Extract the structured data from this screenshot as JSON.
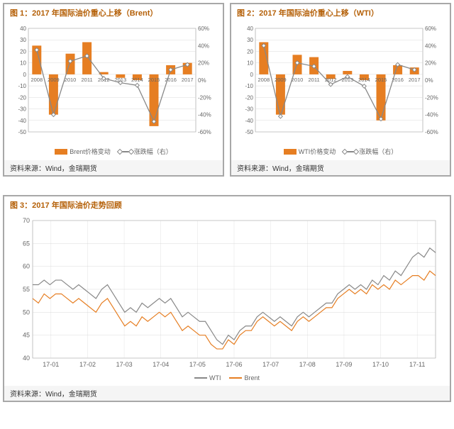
{
  "chart1": {
    "title": "图 1：2017 年国际油价重心上移（Brent）",
    "source": "资料来源：Wind，金瑞期货",
    "type": "bar+line",
    "y_left": {
      "min": -50,
      "max": 40,
      "ticks": [
        -50,
        -40,
        -30,
        -20,
        -10,
        0,
        10,
        20,
        30,
        40
      ]
    },
    "y_right": {
      "min": -60,
      "max": 60,
      "ticks": [
        -60,
        -40,
        -20,
        0,
        20,
        40,
        60
      ],
      "suffix": "%"
    },
    "categories": [
      "2008",
      "2009",
      "2010",
      "2011",
      "2012",
      "2013",
      "2014",
      "2015",
      "2016",
      "2017"
    ],
    "bars": {
      "label": "Brent价格变动",
      "color": "#e67e22",
      "values": [
        25,
        -35,
        18,
        28,
        2,
        -3,
        -5,
        -45,
        8,
        10
      ]
    },
    "line": {
      "label": "涨跌幅（右）",
      "color": "#888888",
      "values": [
        35,
        -40,
        22,
        28,
        2,
        -3,
        -6,
        -48,
        12,
        18
      ]
    },
    "grid_color": "#d0d0d0",
    "bg": "#ffffff",
    "label_fontsize": 8,
    "title_fontsize": 11
  },
  "chart2": {
    "title": "图 2：2017 年国际油价重心上移（WTI）",
    "source": "资料来源：Wind，金瑞期货",
    "type": "bar+line",
    "y_left": {
      "min": -50,
      "max": 40,
      "ticks": [
        -50,
        -40,
        -30,
        -20,
        -10,
        0,
        10,
        20,
        30,
        40
      ]
    },
    "y_right": {
      "min": -60,
      "max": 60,
      "ticks": [
        -60,
        -40,
        -20,
        0,
        20,
        40,
        60
      ],
      "suffix": "%"
    },
    "categories": [
      "2008",
      "2009",
      "2010",
      "2011",
      "2012",
      "2013",
      "2014",
      "2015",
      "2016",
      "2017"
    ],
    "bars": {
      "label": "WTI价格变动",
      "color": "#e67e22",
      "values": [
        28,
        -35,
        17,
        15,
        -4,
        3,
        -5,
        -40,
        8,
        6
      ]
    },
    "line": {
      "label": "涨跌幅（右）",
      "color": "#888888",
      "values": [
        40,
        -42,
        20,
        16,
        -5,
        4,
        -7,
        -45,
        18,
        12
      ]
    },
    "grid_color": "#d0d0d0",
    "bg": "#ffffff",
    "label_fontsize": 8,
    "title_fontsize": 11
  },
  "chart3": {
    "title": "图 3：2017 年国际油价走势回顾",
    "source": "资料来源：Wind，金瑞期货",
    "type": "line",
    "y": {
      "min": 40,
      "max": 70,
      "ticks": [
        40,
        45,
        50,
        55,
        60,
        65,
        70
      ]
    },
    "x_labels": [
      "17-01",
      "17-02",
      "17-03",
      "17-04",
      "17-05",
      "17-06",
      "17-07",
      "17-08",
      "17-09",
      "17-10",
      "17-11"
    ],
    "series": [
      {
        "name": "WTI",
        "color": "#888888",
        "values": [
          56,
          56,
          57,
          56,
          57,
          57,
          56,
          55,
          56,
          55,
          54,
          53,
          55,
          56,
          54,
          52,
          50,
          51,
          50,
          52,
          51,
          52,
          53,
          52,
          53,
          51,
          49,
          50,
          49,
          48,
          48,
          46,
          44,
          43,
          45,
          44,
          46,
          47,
          47,
          49,
          50,
          49,
          48,
          49,
          48,
          47,
          49,
          50,
          49,
          50,
          51,
          52,
          52,
          54,
          55,
          56,
          55,
          56,
          55,
          57,
          56,
          58,
          57,
          59,
          58,
          60,
          62,
          63,
          62,
          64,
          63
        ]
      },
      {
        "name": "Brent",
        "color": "#e67e22",
        "values": [
          53,
          52,
          54,
          53,
          54,
          54,
          53,
          52,
          53,
          52,
          51,
          50,
          52,
          53,
          51,
          49,
          47,
          48,
          47,
          49,
          48,
          49,
          50,
          49,
          50,
          48,
          46,
          47,
          46,
          45,
          45,
          43,
          42,
          42,
          44,
          43,
          45,
          46,
          46,
          48,
          49,
          48,
          47,
          48,
          47,
          46,
          48,
          49,
          48,
          49,
          50,
          51,
          51,
          53,
          54,
          55,
          54,
          55,
          54,
          56,
          55,
          56,
          55,
          57,
          56,
          57,
          58,
          58,
          57,
          59,
          58
        ]
      }
    ],
    "grid_color": "#d0d0d0",
    "bg": "#ffffff",
    "label_fontsize": 9,
    "title_fontsize": 11,
    "line_width": 1.2
  }
}
